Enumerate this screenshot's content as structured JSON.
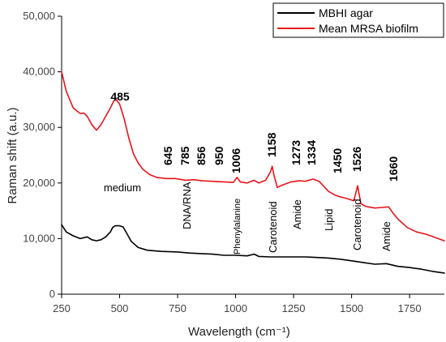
{
  "chart_data": {
    "type": "line",
    "xlabel": "Wavelength (cm⁻¹)",
    "ylabel": "Raman shift (a.u.)",
    "xlim": [
      250,
      1900
    ],
    "ylim": [
      0,
      50000
    ],
    "x_ticks": [
      "250",
      "500",
      "750",
      "1000",
      "1250",
      "1500",
      "1750"
    ],
    "y_ticks": [
      "0",
      "10,000",
      "20,000",
      "30,000",
      "40,000",
      "50,000"
    ],
    "grid": false,
    "legend_position": "top-right",
    "series": [
      {
        "name": "MBHI agar",
        "color": "#000000",
        "x": [
          250,
          270,
          300,
          330,
          360,
          380,
          400,
          420,
          440,
          460,
          470,
          480,
          500,
          515,
          530,
          550,
          580,
          620,
          680,
          750,
          800,
          850,
          900,
          950,
          1000,
          1050,
          1080,
          1100,
          1150,
          1200,
          1250,
          1300,
          1350,
          1400,
          1450,
          1500,
          1550,
          1600,
          1650,
          1700,
          1750,
          1800,
          1850,
          1900
        ],
        "values": [
          12500,
          11200,
          10500,
          10000,
          10300,
          9800,
          9600,
          9800,
          10300,
          11200,
          12000,
          12300,
          12300,
          12100,
          11000,
          9500,
          8400,
          7900,
          7700,
          7600,
          7400,
          7300,
          7200,
          7000,
          7000,
          6900,
          7200,
          6800,
          6700,
          6700,
          6700,
          6700,
          6600,
          6500,
          6300,
          6000,
          5700,
          5400,
          5500,
          5000,
          4800,
          4500,
          4100,
          3800
        ]
      },
      {
        "name": "Mean MRSA biofilm",
        "color": "#e8141a",
        "x": [
          250,
          270,
          300,
          330,
          345,
          360,
          380,
          400,
          420,
          440,
          460,
          475,
          485,
          500,
          520,
          540,
          560,
          580,
          600,
          630,
          660,
          700,
          740,
          785,
          820,
          856,
          900,
          950,
          990,
          1006,
          1020,
          1050,
          1080,
          1100,
          1130,
          1150,
          1158,
          1165,
          1180,
          1200,
          1240,
          1273,
          1300,
          1334,
          1360,
          1400,
          1430,
          1450,
          1480,
          1510,
          1526,
          1540,
          1560,
          1600,
          1630,
          1660,
          1680,
          1700,
          1740,
          1780,
          1820,
          1860,
          1900
        ],
        "values": [
          40000,
          36500,
          33500,
          32500,
          32600,
          32000,
          30500,
          29500,
          30500,
          32000,
          33500,
          34800,
          35000,
          34200,
          31500,
          28000,
          25200,
          23600,
          22500,
          21500,
          21000,
          20800,
          20800,
          20500,
          20600,
          20400,
          20300,
          20200,
          20100,
          21000,
          20200,
          20000,
          20500,
          20000,
          20500,
          22000,
          23000,
          21500,
          19200,
          19600,
          20200,
          20400,
          20300,
          20700,
          20300,
          18500,
          17800,
          17500,
          17200,
          16800,
          19500,
          16300,
          15800,
          15500,
          15600,
          15700,
          14500,
          13500,
          12000,
          11200,
          10800,
          10200,
          9600
        ]
      }
    ],
    "peak_labels": [
      "485",
      "645",
      "785",
      "856",
      "950",
      "1006",
      "1158",
      "1273",
      "1334",
      "1450",
      "1526",
      "1660"
    ],
    "assignment_labels": [
      "medium",
      "DNA/RNA",
      "Phenylalanine",
      "Carotenoid",
      "Amide",
      "Lipid",
      "Carotenoid",
      "Amide"
    ]
  }
}
